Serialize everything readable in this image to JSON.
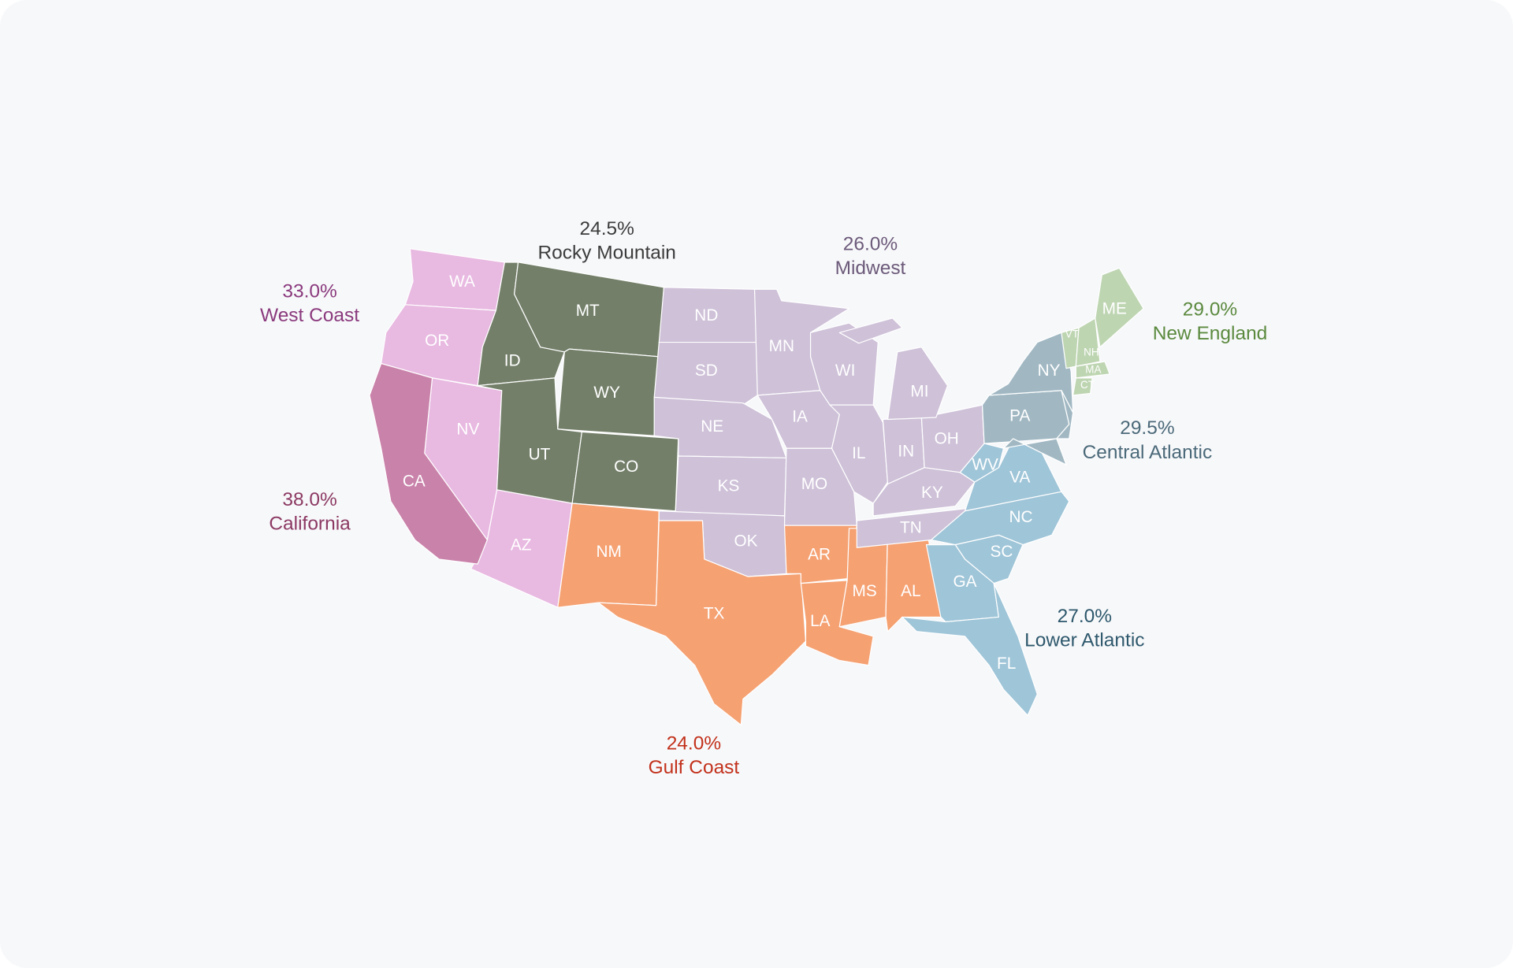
{
  "regions": [
    {
      "name": "West Coast",
      "value": "33.0%",
      "color": "#e8b9e1",
      "label_color": "#8a3a7d",
      "states": [
        "WA",
        "OR",
        "NV",
        "AZ"
      ]
    },
    {
      "name": "California",
      "value": "38.0%",
      "color": "#c982aa",
      "label_color": "#8c3a63",
      "states": [
        "CA"
      ]
    },
    {
      "name": "Rocky Mountain",
      "value": "24.5%",
      "color": "#737f69",
      "label_color": "#3c3c3c",
      "states": [
        "MT",
        "ID",
        "WY",
        "UT",
        "CO"
      ]
    },
    {
      "name": "Midwest",
      "value": "26.0%",
      "color": "#cec1d8",
      "label_color": "#6c5a7a",
      "states": [
        "ND",
        "SD",
        "NE",
        "KS",
        "OK",
        "MN",
        "IA",
        "MO",
        "WI",
        "IL",
        "IN",
        "MI",
        "OH",
        "KY",
        "TN"
      ]
    },
    {
      "name": "Gulf Coast",
      "value": "24.0%",
      "color": "#f5a172",
      "label_color": "#c2311b",
      "states": [
        "NM",
        "TX",
        "AR",
        "LA",
        "MS",
        "AL"
      ]
    },
    {
      "name": "New England",
      "value": "29.0%",
      "color": "#bed5b2",
      "label_color": "#5b8a3f",
      "states": [
        "ME",
        "VT",
        "NH",
        "MA",
        "CT"
      ]
    },
    {
      "name": "Central Atlantic",
      "value": "29.5%",
      "color": "#a1b8c3",
      "label_color": "#4b6979",
      "states": [
        "NY",
        "PA"
      ]
    },
    {
      "name": "Lower Atlantic",
      "value": "27.0%",
      "color": "#9fc5d8",
      "label_color": "#2e586c",
      "states": [
        "WV",
        "VA",
        "NC",
        "SC",
        "GA",
        "FL"
      ]
    }
  ]
}
